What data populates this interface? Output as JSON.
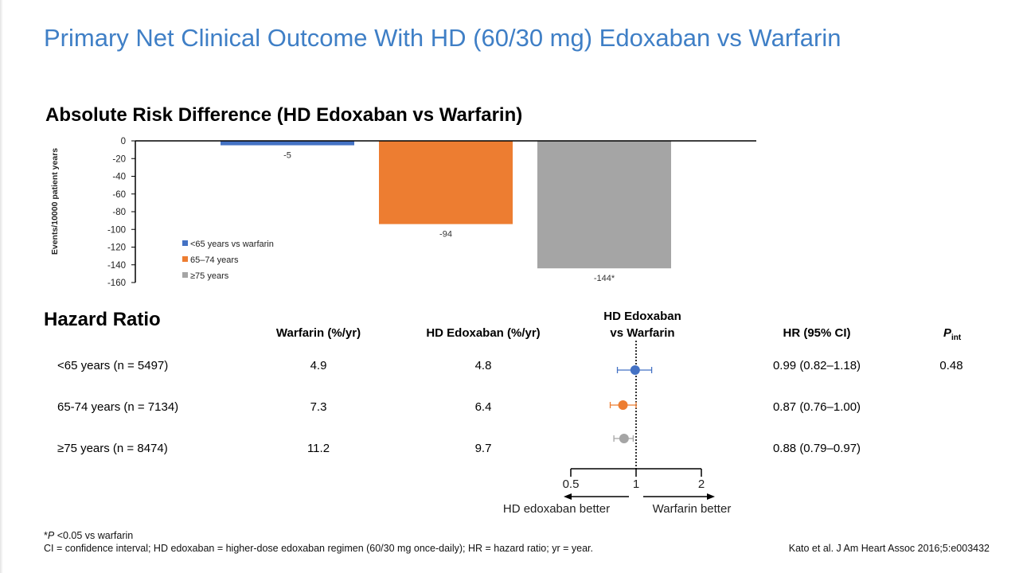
{
  "slide": {
    "title": "Primary Net Clinical Outcome With HD (60/30 mg) Edoxaban vs Warfarin"
  },
  "chart_data": [
    {
      "type": "bar",
      "title": "Absolute Risk Difference (HD Edoxaban vs Warfarin)",
      "ylabel": "Events/10000 patient years",
      "ylim": [
        -160,
        0
      ],
      "yticks": [
        0,
        -20,
        -40,
        -60,
        -80,
        -100,
        -120,
        -140,
        -160
      ],
      "categories": [
        "<65 years vs warfarin",
        "65–74 years",
        "≥75 years"
      ],
      "values": [
        -5,
        -94,
        -144
      ],
      "data_labels": [
        "-5",
        "-94",
        "-144*"
      ],
      "colors": [
        "#4472c4",
        "#ed7d31",
        "#a5a5a5"
      ],
      "legend": "bottom-left",
      "grid": false
    },
    {
      "type": "table",
      "title": "Hazard Ratio",
      "columns": {
        "warfarin": "Warfarin (%/yr)",
        "hd": "HD Edoxaban (%/yr)",
        "plot_line1": "HD Edoxaban",
        "plot_line2": "vs Warfarin",
        "hr": "HR (95% CI)",
        "pint_main": "P",
        "pint_sub": "int"
      },
      "rows": [
        {
          "label": "<65 years (n = 5497)",
          "warfarin": "4.9",
          "hd": "4.8",
          "hr": "0.99 (0.82–1.18)",
          "pint": "0.48",
          "est": 0.99,
          "lo": 0.82,
          "hi": 1.18,
          "color": "#4472c4"
        },
        {
          "label": "65-74 years (n = 7134)",
          "warfarin": "7.3",
          "hd": "6.4",
          "hr": "0.87 (0.76–1.00)",
          "pint": "",
          "est": 0.87,
          "lo": 0.76,
          "hi": 1.0,
          "color": "#ed7d31"
        },
        {
          "label": "≥75 years (n = 8474)",
          "warfarin": "11.2",
          "hd": "9.7",
          "hr": "0.88 (0.79–0.97)",
          "pint": "",
          "est": 0.88,
          "lo": 0.79,
          "hi": 0.97,
          "color": "#a5a5a5"
        }
      ],
      "x_scale": "log",
      "x_ticks": [
        0.5,
        1,
        2
      ],
      "x_tick_labels": [
        "0.5",
        "1",
        "2"
      ],
      "reference_line": 1,
      "left_label": "HD edoxaban  better",
      "right_label": "Warfarin better"
    }
  ],
  "footnotes": {
    "line1_italic": "P",
    "line1_rest": " <0.05 vs warfarin",
    "line1_prefix": "*",
    "line2": "CI = confidence interval; HD edoxaban = higher-dose edoxaban regimen (60/30 mg once-daily); HR = hazard ratio; yr = year.",
    "citation": "Kato et al. J Am Heart Assoc 2016;5:e003432"
  }
}
